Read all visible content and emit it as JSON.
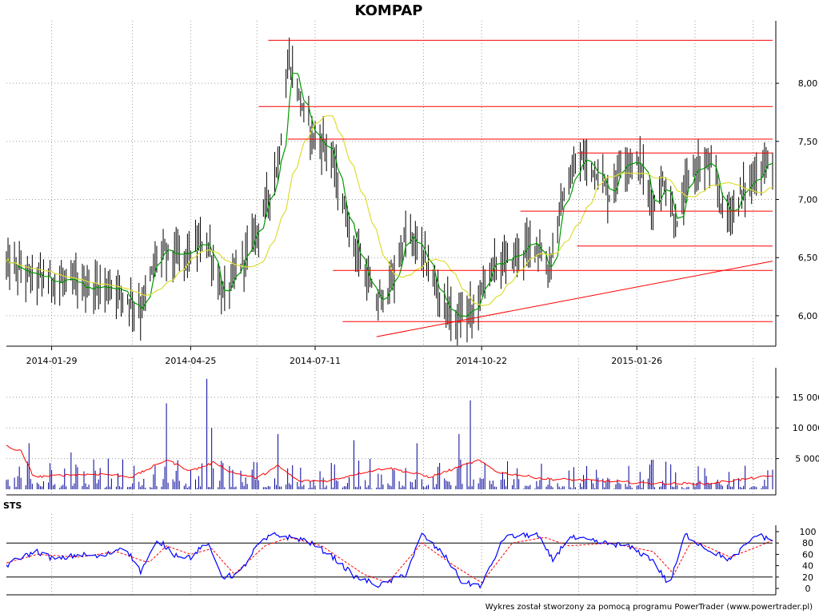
{
  "chart_data": [
    {
      "type": "ohlc",
      "title": "KOMPAP",
      "x_tick_labels": [
        "2014-01-29",
        "2014-04-25",
        "2014-07-11",
        "2014-10-22",
        "2015-01-26"
      ],
      "x_range": [
        "2014-01-01",
        "2015-04-20"
      ],
      "ylim": [
        5.8,
        8.4
      ],
      "y_ticks": [
        6.0,
        6.5,
        7.0,
        7.5,
        8.0
      ],
      "y_tick_labels": [
        "6,00",
        "6,50",
        "7,00",
        "7,50",
        "8,00"
      ],
      "grid": true,
      "colors": {
        "bars": "#000000",
        "ma_fast": "#009900",
        "ma_slow": "#dddd33",
        "levels": "#ff0000"
      },
      "price_anchor_points": [
        [
          "2014-01-01",
          6.45
        ],
        [
          "2014-01-15",
          6.35
        ],
        [
          "2014-02-01",
          6.3
        ],
        [
          "2014-02-20",
          6.25
        ],
        [
          "2014-03-10",
          6.25
        ],
        [
          "2014-03-25",
          6.05
        ],
        [
          "2014-04-05",
          6.55
        ],
        [
          "2014-04-20",
          6.5
        ],
        [
          "2014-05-05",
          6.65
        ],
        [
          "2014-05-15",
          6.15
        ],
        [
          "2014-05-28",
          6.5
        ],
        [
          "2014-06-08",
          6.85
        ],
        [
          "2014-06-18",
          7.3
        ],
        [
          "2014-06-25",
          8.2
        ],
        [
          "2014-07-05",
          7.7
        ],
        [
          "2014-07-12",
          7.5
        ],
        [
          "2014-07-20",
          7.45
        ],
        [
          "2014-07-27",
          7.0
        ],
        [
          "2014-08-07",
          6.5
        ],
        [
          "2014-08-18",
          6.1
        ],
        [
          "2014-08-28",
          6.3
        ],
        [
          "2014-09-05",
          6.7
        ],
        [
          "2014-09-15",
          6.55
        ],
        [
          "2014-09-25",
          6.2
        ],
        [
          "2014-10-05",
          5.97
        ],
        [
          "2014-10-18",
          6.05
        ],
        [
          "2014-10-26",
          6.4
        ],
        [
          "2014-11-10",
          6.5
        ],
        [
          "2014-11-25",
          6.65
        ],
        [
          "2014-12-02",
          6.35
        ],
        [
          "2014-12-10",
          6.95
        ],
        [
          "2014-12-22",
          7.35
        ],
        [
          "2015-01-02",
          7.25
        ],
        [
          "2015-01-10",
          7.0
        ],
        [
          "2015-01-16",
          7.35
        ],
        [
          "2015-01-28",
          7.3
        ],
        [
          "2015-02-05",
          6.95
        ],
        [
          "2015-02-12",
          7.15
        ],
        [
          "2015-02-20",
          6.75
        ],
        [
          "2015-02-28",
          7.25
        ],
        [
          "2015-03-12",
          7.3
        ],
        [
          "2015-03-22",
          6.85
        ],
        [
          "2015-04-01",
          7.05
        ],
        [
          "2015-04-12",
          7.25
        ],
        [
          "2015-04-20",
          7.35
        ]
      ],
      "support_resistance_levels": [
        {
          "value": 8.37,
          "from": "2014-06-12",
          "to": "2015-04-20"
        },
        {
          "value": 7.8,
          "from": "2014-06-06",
          "to": "2015-04-20"
        },
        {
          "value": 7.52,
          "from": "2014-06-24",
          "to": "2015-04-20"
        },
        {
          "value": 7.4,
          "from": "2014-12-20",
          "to": "2015-04-20"
        },
        {
          "value": 6.9,
          "from": "2014-11-15",
          "to": "2015-04-20"
        },
        {
          "value": 6.6,
          "from": "2014-12-20",
          "to": "2015-04-20"
        },
        {
          "value": 6.39,
          "from": "2014-07-22",
          "to": "2015-04-20"
        },
        {
          "value": 5.95,
          "from": "2014-07-28",
          "to": "2015-04-20"
        }
      ],
      "trend_line": {
        "from": [
          "2014-08-18",
          5.82
        ],
        "to": [
          "2015-04-20",
          6.47
        ]
      }
    },
    {
      "type": "bar",
      "name": "Volume",
      "ylim": [
        0,
        18500
      ],
      "y_ticks": [
        5000,
        10000,
        15000
      ],
      "y_tick_labels": [
        "5 000",
        "10 000",
        "15 000"
      ],
      "grid": true,
      "colors": {
        "bars": "#000099",
        "average": "#ff0000"
      },
      "spikes": [
        [
          "2014-01-15",
          7500
        ],
        [
          "2014-02-10",
          6000
        ],
        [
          "2014-03-05",
          5000
        ],
        [
          "2014-04-05",
          13000
        ],
        [
          "2014-04-10",
          14000
        ],
        [
          "2014-05-05",
          18000
        ],
        [
          "2014-05-08",
          10000
        ],
        [
          "2014-06-18",
          9000
        ],
        [
          "2014-08-04",
          8000
        ],
        [
          "2014-09-12",
          7500
        ],
        [
          "2014-10-08",
          9000
        ],
        [
          "2014-10-15",
          14500
        ],
        [
          "2014-10-18",
          10000
        ],
        [
          "2014-11-15",
          9700
        ],
        [
          "2015-03-28",
          8500
        ]
      ],
      "average_anchor_points": [
        [
          "2014-01-01",
          7000
        ],
        [
          "2014-01-10",
          6200
        ],
        [
          "2014-01-18",
          2000
        ],
        [
          "2014-02-05",
          2300
        ],
        [
          "2014-03-01",
          2500
        ],
        [
          "2014-03-20",
          2000
        ],
        [
          "2014-04-10",
          4800
        ],
        [
          "2014-04-25",
          3000
        ],
        [
          "2014-05-10",
          4400
        ],
        [
          "2014-05-20",
          2800
        ],
        [
          "2014-06-05",
          1800
        ],
        [
          "2014-06-18",
          3800
        ],
        [
          "2014-07-01",
          1300
        ],
        [
          "2014-07-20",
          1400
        ],
        [
          "2014-08-10",
          2800
        ],
        [
          "2014-08-25",
          3500
        ],
        [
          "2014-09-20",
          2000
        ],
        [
          "2014-10-10",
          3800
        ],
        [
          "2014-10-20",
          4700
        ],
        [
          "2014-11-01",
          2800
        ],
        [
          "2014-12-01",
          1700
        ],
        [
          "2015-01-01",
          1400
        ],
        [
          "2015-02-01",
          1000
        ],
        [
          "2015-03-10",
          900
        ],
        [
          "2015-04-20",
          2200
        ]
      ]
    },
    {
      "type": "line",
      "panel_label": "STS",
      "ylim": [
        0,
        100
      ],
      "y_ticks": [
        0,
        20,
        40,
        60,
        80,
        100
      ],
      "y_tick_labels": [
        "0",
        "20",
        "40",
        "60",
        "80",
        "100"
      ],
      "reference_lines": [
        20,
        80
      ],
      "colors": {
        "k_line": "#0000ff",
        "d_line": "#ff0000"
      },
      "k_anchor_points": [
        [
          "2014-01-01",
          40
        ],
        [
          "2014-01-10",
          55
        ],
        [
          "2014-01-20",
          65
        ],
        [
          "2014-02-01",
          50
        ],
        [
          "2014-02-15",
          60
        ],
        [
          "2014-03-01",
          55
        ],
        [
          "2014-03-15",
          75
        ],
        [
          "2014-03-25",
          30
        ],
        [
          "2014-04-05",
          85
        ],
        [
          "2014-04-15",
          60
        ],
        [
          "2014-04-25",
          55
        ],
        [
          "2014-05-05",
          80
        ],
        [
          "2014-05-15",
          20
        ],
        [
          "2014-05-25",
          25
        ],
        [
          "2014-06-05",
          75
        ],
        [
          "2014-06-15",
          95
        ],
        [
          "2014-06-25",
          90
        ],
        [
          "2014-07-05",
          85
        ],
        [
          "2014-07-20",
          60
        ],
        [
          "2014-08-05",
          20
        ],
        [
          "2014-08-20",
          5
        ],
        [
          "2014-09-05",
          25
        ],
        [
          "2014-09-15",
          95
        ],
        [
          "2014-09-30",
          55
        ],
        [
          "2014-10-10",
          10
        ],
        [
          "2014-10-22",
          5
        ],
        [
          "2014-11-05",
          90
        ],
        [
          "2014-11-25",
          95
        ],
        [
          "2014-12-05",
          50
        ],
        [
          "2014-12-15",
          90
        ],
        [
          "2015-01-05",
          80
        ],
        [
          "2015-01-20",
          75
        ],
        [
          "2015-02-05",
          50
        ],
        [
          "2015-02-15",
          5
        ],
        [
          "2015-02-25",
          95
        ],
        [
          "2015-03-10",
          70
        ],
        [
          "2015-03-25",
          50
        ],
        [
          "2015-04-10",
          95
        ],
        [
          "2015-04-20",
          85
        ]
      ],
      "d_anchor_points": [
        [
          "2014-01-01",
          45
        ],
        [
          "2014-01-20",
          60
        ],
        [
          "2014-02-15",
          55
        ],
        [
          "2014-03-10",
          65
        ],
        [
          "2014-03-30",
          45
        ],
        [
          "2014-04-10",
          75
        ],
        [
          "2014-04-25",
          60
        ],
        [
          "2014-05-08",
          70
        ],
        [
          "2014-05-22",
          25
        ],
        [
          "2014-06-10",
          75
        ],
        [
          "2014-06-25",
          90
        ],
        [
          "2014-07-15",
          75
        ],
        [
          "2014-08-10",
          25
        ],
        [
          "2014-08-25",
          10
        ],
        [
          "2014-09-15",
          80
        ],
        [
          "2014-10-05",
          40
        ],
        [
          "2014-10-22",
          10
        ],
        [
          "2014-11-10",
          80
        ],
        [
          "2014-11-30",
          90
        ],
        [
          "2014-12-15",
          75
        ],
        [
          "2015-01-10",
          80
        ],
        [
          "2015-02-05",
          65
        ],
        [
          "2015-02-18",
          25
        ],
        [
          "2015-03-01",
          85
        ],
        [
          "2015-03-25",
          55
        ],
        [
          "2015-04-12",
          75
        ],
        [
          "2015-04-20",
          85
        ]
      ]
    }
  ],
  "footer_text": "Wykres został stworzony za pomocą programu PowerTrader (www.powertrader.pl)"
}
